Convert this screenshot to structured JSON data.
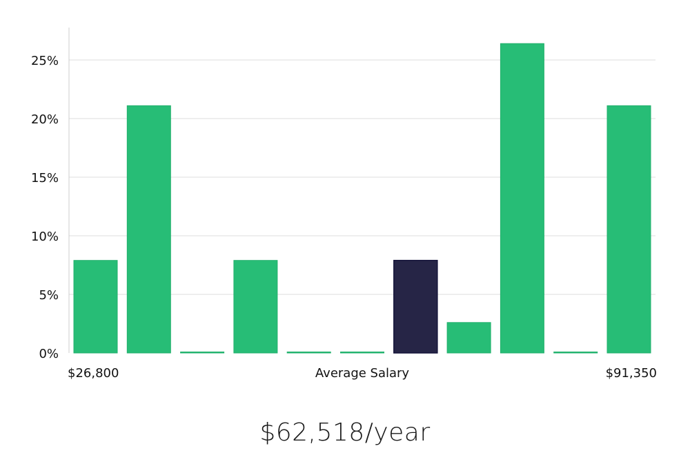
{
  "chart_data": {
    "type": "bar",
    "xlabel": "Average Salary",
    "x_range_labels": {
      "min": "$26,800",
      "max": "$91,350"
    },
    "y_ticks": [
      "0%",
      "5%",
      "10%",
      "15%",
      "20%",
      "25%"
    ],
    "ylim": [
      0,
      28
    ],
    "grid": true,
    "values": [
      7.9,
      21.1,
      0,
      7.9,
      0,
      0,
      7.9,
      2.6,
      26.4,
      0,
      21.1
    ],
    "highlight_index": 6,
    "colors": {
      "bar": "#27bd76",
      "highlight": "#262546",
      "grid": "#dddddd",
      "axis": "#cccccc"
    }
  },
  "salary": {
    "text": "$62,518/year"
  }
}
